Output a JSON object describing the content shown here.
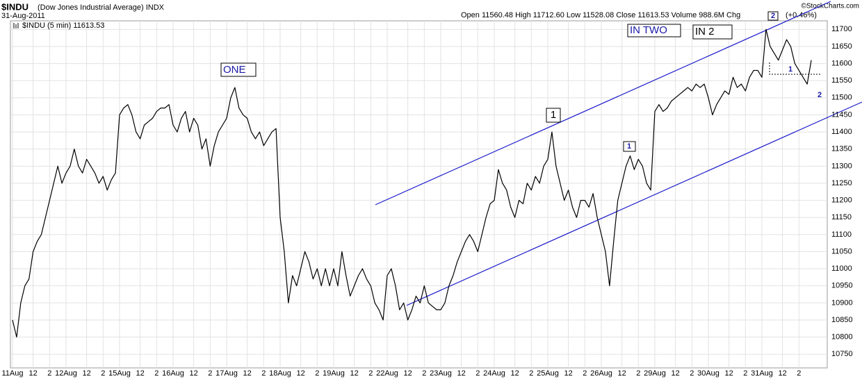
{
  "chart_data": {
    "type": "line",
    "title": "$INDU",
    "subtitle": "(Dow Jones Industrial Average) INDX",
    "date": "31-Aug-2011",
    "quote": "Open 11560.48 High 11712.60 Low 11528.08 Close 11613.53 Volume 988.6M Chg",
    "change": "(+0.46%)",
    "credit": "©StockCharts.com",
    "annotations": [
      "ONE",
      "IN TWO",
      "IN 2",
      "1",
      "1",
      "2",
      "1",
      "2"
    ],
    "categories": [
      "11Aug",
      null,
      null,
      null,
      null,
      "12",
      null,
      null,
      null,
      "2",
      null,
      null,
      null,
      "12Aug",
      null,
      null,
      null,
      null,
      "12",
      null,
      null,
      null,
      "2",
      null,
      null,
      null,
      "15Aug",
      null,
      null,
      null,
      null,
      "12",
      null,
      null,
      null,
      "2",
      null,
      null,
      null,
      "16Aug",
      null,
      null,
      null,
      null,
      "12",
      null,
      null,
      null,
      "2",
      null,
      null,
      null,
      "17Aug",
      null,
      null,
      null,
      null,
      "12",
      null,
      null,
      null,
      "2",
      null,
      null,
      null,
      "18Aug",
      null,
      null,
      null,
      null,
      "12",
      null,
      null,
      null,
      "2",
      null,
      null,
      null,
      "19Aug",
      null,
      null,
      null,
      null,
      "12",
      null,
      null,
      null,
      "2",
      null,
      null,
      null,
      "22Aug",
      null,
      null,
      null,
      null,
      "12",
      null,
      null,
      null,
      "2",
      null,
      null,
      null,
      "23Aug",
      null,
      null,
      null,
      null,
      "12",
      null,
      null,
      null,
      "2",
      null,
      null,
      null,
      "24Aug",
      null,
      null,
      null,
      null,
      "12",
      null,
      null,
      null,
      "2",
      null,
      null,
      null,
      "25Aug",
      null,
      null,
      null,
      null,
      "12",
      null,
      null,
      null,
      "2",
      null,
      null,
      null,
      "26Aug",
      null,
      null,
      null,
      null,
      "12",
      null,
      null,
      null,
      "2",
      null,
      null,
      null,
      "29Aug",
      null,
      null,
      null,
      null,
      "12",
      null,
      null,
      null,
      "2",
      null,
      null,
      null,
      "30Aug",
      null,
      null,
      null,
      null,
      "12",
      null,
      null,
      null,
      "2",
      null,
      null,
      null,
      "31Aug",
      null,
      null,
      null,
      null,
      "12",
      null,
      null,
      null,
      "2",
      null,
      null,
      null
    ],
    "series": [
      {
        "name": "$INDU (5 min) 11613.53",
        "color": "#000000",
        "values": [
          10850,
          10800,
          10900,
          10950,
          10970,
          11050,
          11080,
          11100,
          11150,
          11200,
          11250,
          11300,
          11250,
          11280,
          11300,
          11350,
          11300,
          11280,
          11320,
          11300,
          11280,
          11250,
          11270,
          11230,
          11260,
          11280,
          11450,
          11470,
          11480,
          11450,
          11400,
          11380,
          11420,
          11430,
          11440,
          11460,
          11470,
          11470,
          11480,
          11420,
          11400,
          11440,
          11460,
          11400,
          11440,
          11420,
          11350,
          11380,
          11300,
          11360,
          11400,
          11420,
          11440,
          11500,
          11530,
          11470,
          11450,
          11440,
          11400,
          11380,
          11400,
          11360,
          11380,
          11400,
          11410,
          11150,
          11050,
          10900,
          10980,
          10950,
          11000,
          11050,
          11020,
          10970,
          11000,
          10950,
          11000,
          10950,
          11000,
          10950,
          11050,
          10980,
          10920,
          10950,
          10980,
          11000,
          10970,
          10950,
          10900,
          10880,
          10850,
          10980,
          11000,
          10950,
          10880,
          10900,
          10850,
          10880,
          10920,
          10900,
          10950,
          10900,
          10890,
          10880,
          10880,
          10900,
          10950,
          10980,
          11020,
          11050,
          11080,
          11100,
          11080,
          11050,
          11100,
          11150,
          11190,
          11200,
          11290,
          11250,
          11230,
          11180,
          11150,
          11200,
          11190,
          11250,
          11230,
          11270,
          11250,
          11300,
          11320,
          11400,
          11300,
          11250,
          11200,
          11230,
          11180,
          11150,
          11200,
          11200,
          11180,
          11220,
          11150,
          11100,
          11050,
          10950,
          11080,
          11200,
          11250,
          11300,
          11330,
          11290,
          11320,
          11300,
          11250,
          11230,
          11460,
          11480,
          11460,
          11470,
          11490,
          11500,
          11510,
          11520,
          11530,
          11520,
          11540,
          11530,
          11540,
          11500,
          11450,
          11480,
          11500,
          11520,
          11510,
          11560,
          11530,
          11540,
          11520,
          11560,
          11580,
          11580,
          11560,
          11700,
          11650,
          11630,
          11610,
          11640,
          11670,
          11650,
          11600,
          11580,
          11560,
          11540,
          11610
        ]
      }
    ],
    "ylim": [
      10710,
      11725
    ],
    "yticks": [
      10750,
      10800,
      10850,
      10900,
      10950,
      11000,
      11050,
      11100,
      11150,
      11200,
      11250,
      11300,
      11350,
      11400,
      11450,
      11500,
      11550,
      11600,
      11650,
      11700
    ],
    "grid": true
  }
}
